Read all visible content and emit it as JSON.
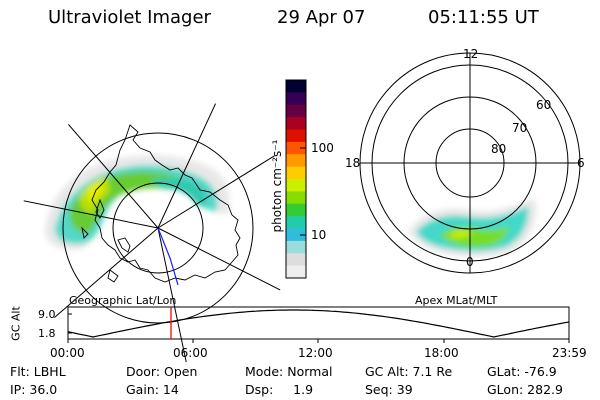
{
  "header": {
    "instrument": "Ultraviolet Imager",
    "date": "29 Apr 07",
    "time": "05:11:55 UT"
  },
  "colorbar": {
    "unit_label": "photon cm⁻²s⁻¹",
    "ticks": [
      "100",
      "10"
    ],
    "scale": "log",
    "colors": [
      "#000033",
      "#330055",
      "#660044",
      "#aa0022",
      "#dd1100",
      "#ff5500",
      "#ff9900",
      "#ffcc00",
      "#ccee00",
      "#88dd00",
      "#33cc33",
      "#22ccaa",
      "#33bbdd",
      "#99dddd",
      "#dddddd",
      "#eeeeee"
    ]
  },
  "left_map": {
    "label": "Geographic Lat/Lon"
  },
  "right_map": {
    "label": "Apex  MLat/MLT",
    "mlt_labels": {
      "top": "12",
      "left": "18",
      "right": "6",
      "bottom": "0"
    },
    "lat_labels": [
      "60",
      "70",
      "80"
    ]
  },
  "altitude_strip": {
    "ylabel": "GC Alt",
    "y_ticks": [
      "9.0",
      "1.8"
    ],
    "x_ticks": [
      "00:00",
      "06:00",
      "12:00",
      "18:00",
      "23:59"
    ],
    "marker_color": "#ff0000"
  },
  "status": {
    "rows": [
      [
        "Flt: LBHL",
        "Door: Open",
        "Mode: Normal",
        "GC Alt: 7.1 Re",
        "GLat: -76.9"
      ],
      [
        "IP: 36.0",
        "Gain: 14",
        "Dsp:     1.9",
        "Seq: 39",
        "GLon: 282.9"
      ]
    ]
  }
}
